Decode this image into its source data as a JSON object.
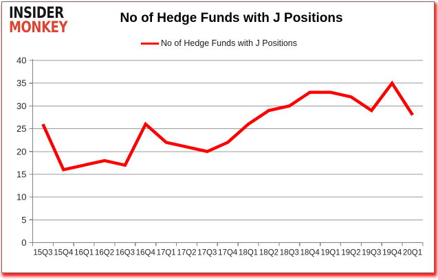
{
  "logo": {
    "line1": "INSIDER",
    "line2": "MONKEY"
  },
  "header": {
    "title": "No of Hedge Funds with J Positions"
  },
  "legend": {
    "label": "No of Hedge Funds with J Positions",
    "line_color": "#fe0000"
  },
  "chart_data": {
    "type": "line",
    "title": "No of Hedge Funds with J Positions",
    "series_name": "No of Hedge Funds with J Positions",
    "categories": [
      "15Q3",
      "15Q4",
      "16Q1",
      "16Q2",
      "16Q3",
      "16Q4",
      "17Q1",
      "17Q2",
      "17Q3",
      "17Q4",
      "18Q1",
      "18Q2",
      "18Q3",
      "18Q4",
      "19Q1",
      "19Q2",
      "19Q3",
      "19Q4",
      "20Q1"
    ],
    "values": [
      26,
      16,
      17,
      18,
      17,
      26,
      22,
      21,
      20,
      22,
      26,
      29,
      30,
      33,
      33,
      32,
      29,
      35,
      28
    ],
    "xlabel": "",
    "ylabel": "",
    "ylim": [
      0,
      40
    ],
    "ytick_step": 5,
    "grid": true,
    "legend_position": "top",
    "line_color": "#fe0000",
    "gridline_color": "#9a9a9a",
    "axis_color": "#808080",
    "axis_text_color": "#262626"
  },
  "colors": {
    "logo_black": "#151515",
    "logo_red": "#dd4430",
    "frame_glow": "#ff0000"
  }
}
